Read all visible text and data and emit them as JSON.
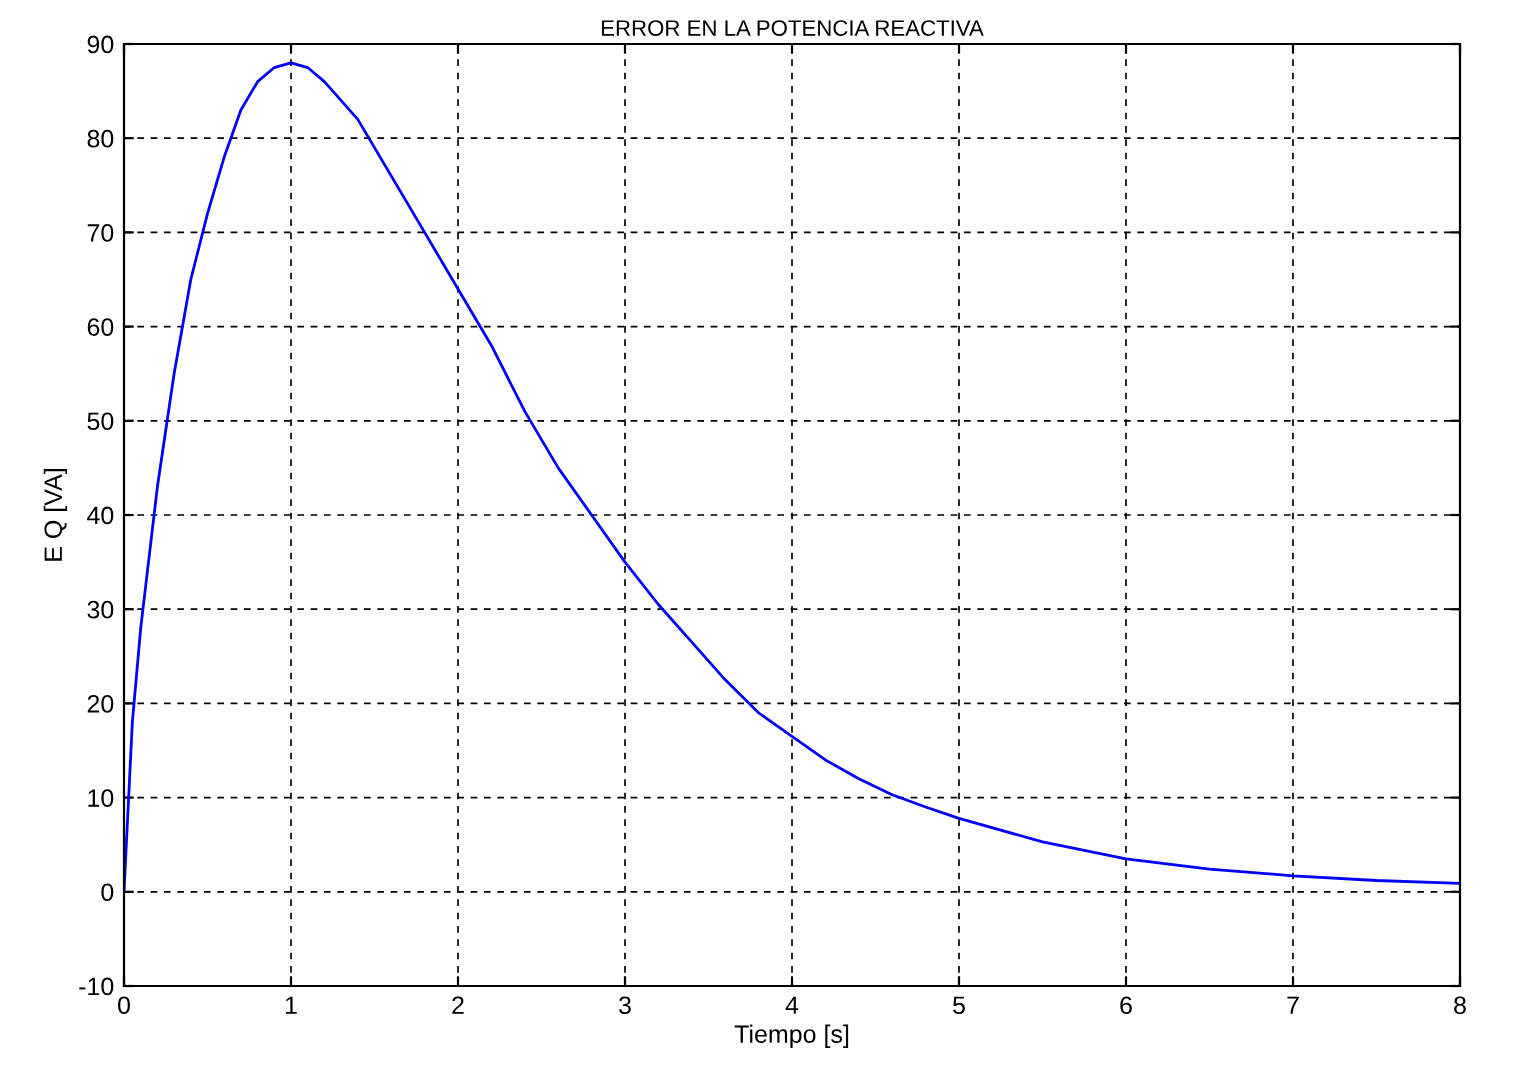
{
  "chart_data": {
    "type": "line",
    "title": "ERROR EN LA POTENCIA REACTIVA",
    "xlabel": "Tiempo [s]",
    "ylabel": "E Q [VA]",
    "xlim": [
      0,
      8
    ],
    "ylim": [
      -10,
      90
    ],
    "xticks": [
      0,
      1,
      2,
      3,
      4,
      5,
      6,
      7,
      8
    ],
    "yticks": [
      -10,
      0,
      10,
      20,
      30,
      40,
      50,
      60,
      70,
      80,
      90
    ],
    "grid": true,
    "line_style": "solid",
    "marker": "none",
    "series": [
      {
        "color": "#0000ff",
        "x": [
          0,
          0.05,
          0.1,
          0.2,
          0.3,
          0.4,
          0.5,
          0.6,
          0.7,
          0.8,
          0.9,
          1.0,
          1.1,
          1.2,
          1.4,
          1.6,
          1.8,
          2.0,
          2.2,
          2.4,
          2.6,
          2.8,
          3.0,
          3.2,
          3.4,
          3.6,
          3.8,
          4.0,
          4.2,
          4.4,
          4.6,
          4.8,
          5.0,
          5.5,
          6.0,
          6.5,
          7.0,
          7.5,
          8.0
        ],
        "values": [
          0,
          18,
          28,
          43,
          55,
          65,
          72,
          78,
          83,
          86,
          87.5,
          88,
          87.5,
          86,
          82,
          76,
          70,
          64,
          58,
          51,
          45,
          40,
          35,
          30.5,
          26.5,
          22.5,
          19,
          16.5,
          14,
          12,
          10.3,
          9,
          7.8,
          5.3,
          3.5,
          2.4,
          1.7,
          1.2,
          0.9
        ]
      }
    ]
  }
}
